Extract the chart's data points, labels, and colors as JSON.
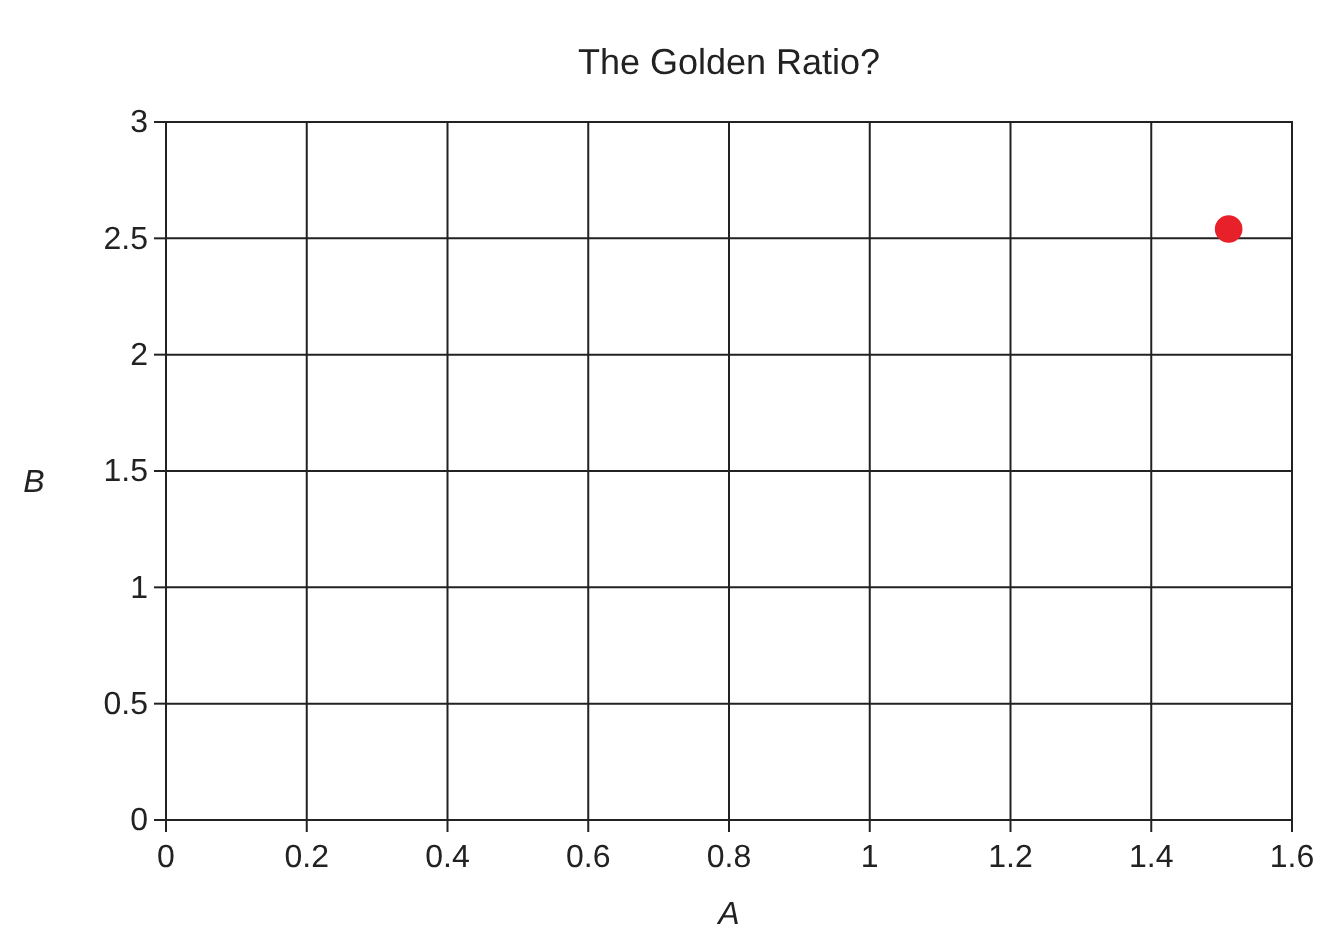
{
  "chart_data": {
    "type": "scatter",
    "title": "The Golden Ratio?",
    "xlabel": "A",
    "ylabel": "B",
    "x": [
      1.51
    ],
    "values": [
      2.54
    ],
    "color": "#e8202a",
    "marker": "circle",
    "xlim": [
      0,
      1.6
    ],
    "xticks": [
      0,
      0.2,
      0.4,
      0.6,
      0.8,
      1,
      1.2,
      1.4,
      1.6
    ],
    "ylim": [
      0,
      3
    ],
    "yticks": [
      0,
      0.5,
      1,
      1.5,
      2,
      2.5,
      3
    ],
    "grid": true
  }
}
